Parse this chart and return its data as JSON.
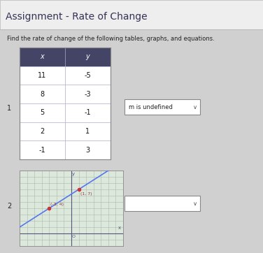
{
  "title": "Assignment - Rate of Change",
  "subtitle": "Find the rate of change of the following tables, graphs, and equations.",
  "bg_color": "#d8d8d8",
  "title_bg": "#f0f0f0",
  "content_bg": "#d0d0d0",
  "table_headers": [
    "x",
    "y"
  ],
  "table_data": [
    [
      11,
      -5
    ],
    [
      8,
      -3
    ],
    [
      5,
      -1
    ],
    [
      2,
      1
    ],
    [
      -1,
      3
    ]
  ],
  "label1": "1",
  "label2": "2",
  "dropdown1_text": "m is undefined",
  "graph_points": [
    [
      -3,
      4
    ],
    [
      1,
      7
    ]
  ],
  "graph_xlim": [
    -7,
    7
  ],
  "graph_ylim": [
    -2,
    10
  ],
  "line_color": "#5577ee",
  "point_label1": "(-3, 4)",
  "point_label2": "(1, 7)",
  "title_fontsize": 10,
  "subtitle_fontsize": 6,
  "table_header_bg": "#444466",
  "graph_bg": "#dde8dd",
  "grid_color": "#aabbaa"
}
